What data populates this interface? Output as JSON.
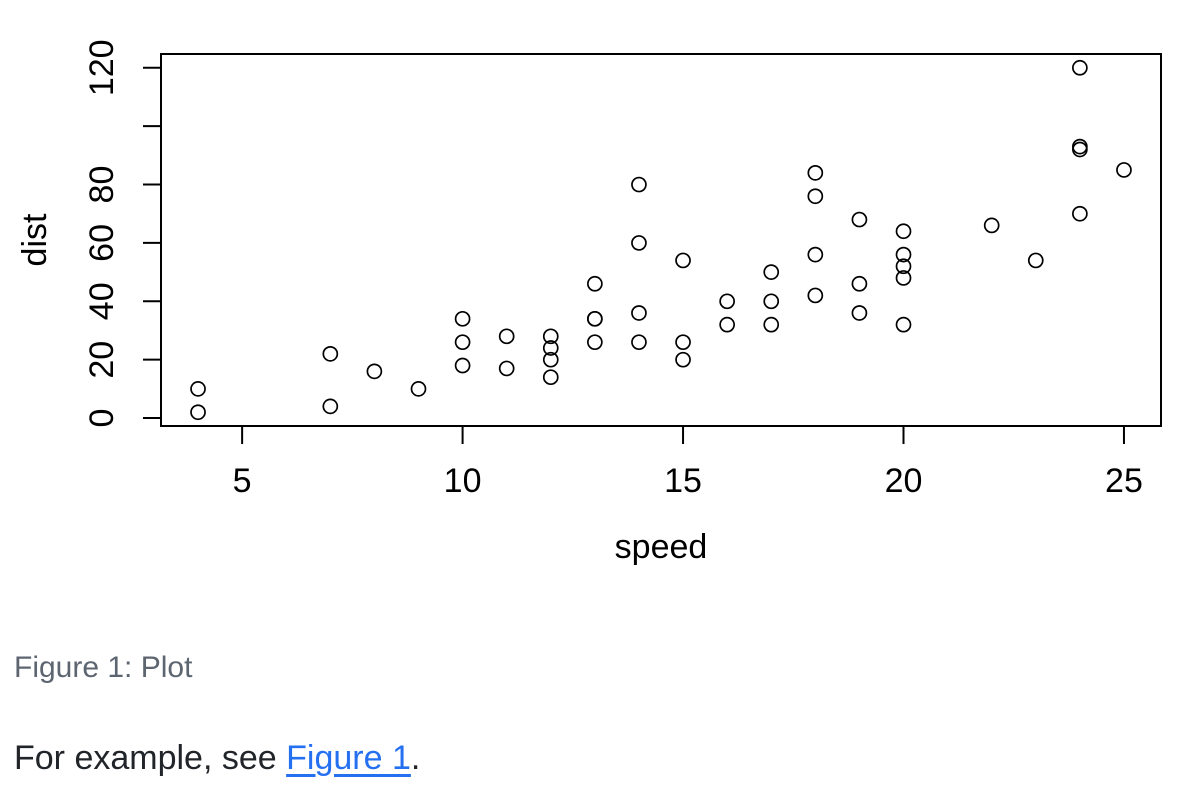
{
  "page": {
    "background": "#ffffff",
    "text_color": "#212529"
  },
  "figure": {
    "caption": "Figure 1: Plot",
    "caption_color": "#5d6570"
  },
  "paragraph": {
    "prefix": "For example, see ",
    "link_text": "Figure 1",
    "suffix": ".",
    "link_color": "#2470f0"
  },
  "chart_data": {
    "type": "scatter",
    "title": "",
    "xlabel": "speed",
    "ylabel": "dist",
    "x_ticks": [
      5,
      10,
      15,
      20,
      25
    ],
    "y_ticks": [
      0,
      20,
      40,
      60,
      80,
      100,
      120
    ],
    "y_tick_labels": [
      "0",
      "20",
      "40",
      "60",
      "80",
      "",
      "120"
    ],
    "xlim": [
      3.16,
      25.84
    ],
    "ylim": [
      -2.72,
      124.72
    ],
    "grid": false,
    "legend": false,
    "marker": "open-circle",
    "marker_color": "#000000",
    "points": [
      [
        4,
        2
      ],
      [
        4,
        10
      ],
      [
        7,
        4
      ],
      [
        7,
        22
      ],
      [
        8,
        16
      ],
      [
        9,
        10
      ],
      [
        10,
        18
      ],
      [
        10,
        26
      ],
      [
        10,
        34
      ],
      [
        11,
        17
      ],
      [
        11,
        28
      ],
      [
        12,
        14
      ],
      [
        12,
        20
      ],
      [
        12,
        24
      ],
      [
        12,
        28
      ],
      [
        13,
        26
      ],
      [
        13,
        34
      ],
      [
        13,
        34
      ],
      [
        13,
        46
      ],
      [
        14,
        26
      ],
      [
        14,
        36
      ],
      [
        14,
        60
      ],
      [
        14,
        80
      ],
      [
        15,
        20
      ],
      [
        15,
        26
      ],
      [
        15,
        54
      ],
      [
        16,
        32
      ],
      [
        16,
        40
      ],
      [
        17,
        32
      ],
      [
        17,
        40
      ],
      [
        17,
        50
      ],
      [
        18,
        42
      ],
      [
        18,
        56
      ],
      [
        18,
        76
      ],
      [
        18,
        84
      ],
      [
        19,
        36
      ],
      [
        19,
        46
      ],
      [
        19,
        68
      ],
      [
        20,
        32
      ],
      [
        20,
        48
      ],
      [
        20,
        52
      ],
      [
        20,
        56
      ],
      [
        20,
        64
      ],
      [
        22,
        66
      ],
      [
        23,
        54
      ],
      [
        24,
        70
      ],
      [
        24,
        92
      ],
      [
        24,
        93
      ],
      [
        24,
        120
      ],
      [
        25,
        85
      ]
    ]
  }
}
